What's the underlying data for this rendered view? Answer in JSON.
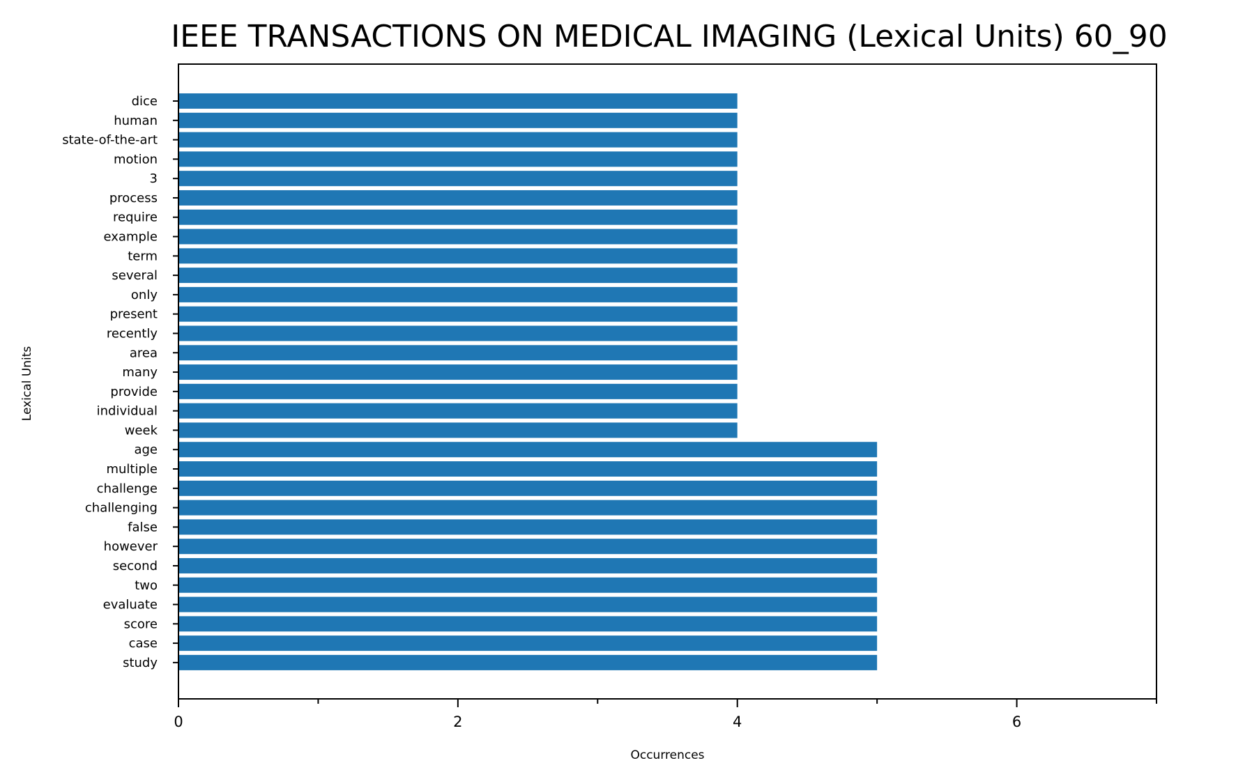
{
  "chart_data": {
    "type": "bar",
    "orientation": "horizontal",
    "title": "IEEE TRANSACTIONS ON MEDICAL IMAGING (Lexical Units) 60_90",
    "xlabel": "Occurrences",
    "ylabel": "Lexical Units",
    "xlim": [
      0,
      7
    ],
    "xticks": [
      0,
      2,
      4,
      6
    ],
    "xticks_minor": [
      1,
      3,
      5,
      7
    ],
    "grid": false,
    "color": "#1f77b4",
    "categories": [
      "dice",
      "human",
      "state-of-the-art",
      "motion",
      "3",
      "process",
      "require",
      "example",
      "term",
      "several",
      "only",
      "present",
      "recently",
      "area",
      "many",
      "provide",
      "individual",
      "week",
      "age",
      "multiple",
      "challenge",
      "challenging",
      "false",
      "however",
      "second",
      "two",
      "evaluate",
      "score",
      "case",
      "study"
    ],
    "values": [
      4,
      4,
      4,
      4,
      4,
      4,
      4,
      4,
      4,
      4,
      4,
      4,
      4,
      4,
      4,
      4,
      4,
      4,
      5,
      5,
      5,
      5,
      5,
      5,
      5,
      5,
      5,
      5,
      5,
      5
    ]
  }
}
